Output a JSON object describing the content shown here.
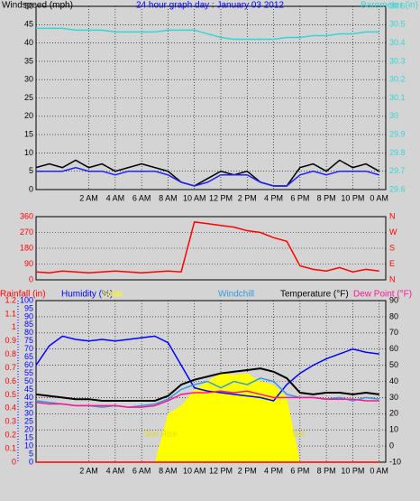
{
  "chart_data": [
    {
      "type": "line",
      "title": "24 hour graph day : January 03 2012",
      "x": [
        -2,
        -1,
        0,
        1,
        2,
        3,
        4,
        5,
        6,
        7,
        8,
        9,
        10,
        11,
        12,
        13,
        14,
        15,
        16,
        17,
        18,
        19,
        20,
        21,
        22,
        23,
        24
      ],
      "xlim": [
        -2,
        24.5
      ],
      "xticks": [
        {
          "value": 2,
          "label": "2 AM"
        },
        {
          "value": 4,
          "label": "4 AM"
        },
        {
          "value": 6,
          "label": "6 AM"
        },
        {
          "value": 8,
          "label": "8 AM"
        },
        {
          "value": 10,
          "label": "10 AM"
        },
        {
          "value": 12,
          "label": "12 PM"
        },
        {
          "value": 14,
          "label": "2 PM"
        },
        {
          "value": 16,
          "label": "4 PM"
        },
        {
          "value": 18,
          "label": "6 PM"
        },
        {
          "value": 20,
          "label": "8 PM"
        },
        {
          "value": 22,
          "label": "10 PM"
        },
        {
          "value": 24,
          "label": "0 AM"
        }
      ],
      "ylim": [
        0,
        50
      ],
      "yticks": [
        0,
        5,
        10,
        15,
        20,
        25,
        30,
        35,
        40,
        45,
        50
      ],
      "ycolor": "#000000",
      "y2lim": [
        29.6,
        30.6
      ],
      "y2ticks": [
        29.6,
        29.7,
        29.8,
        29.9,
        30,
        30.1,
        30.2,
        30.3,
        30.4,
        30.5,
        30.6
      ],
      "y2color": "#33d6d6",
      "grid": true,
      "series": [
        {
          "name": "Windspeed (mph)",
          "color": "#000000",
          "values": [
            6,
            7,
            6,
            8,
            6,
            7,
            5,
            6,
            7,
            6,
            5,
            2,
            1,
            3,
            5,
            4,
            5,
            2,
            1,
            1,
            6,
            7,
            5,
            8,
            6,
            7,
            5
          ]
        },
        {
          "color": "#2020ff",
          "values": [
            5,
            5,
            5,
            6,
            5,
            5,
            4,
            5,
            5,
            5,
            4,
            2,
            1,
            2,
            4,
            4,
            4,
            2,
            1,
            1,
            4,
            5,
            4,
            5,
            5,
            5,
            4
          ]
        },
        {
          "name": "Barometer (in)",
          "color": "#33d6d6",
          "axis": "y2",
          "values": [
            30.48,
            30.48,
            30.48,
            30.47,
            30.47,
            30.47,
            30.46,
            30.46,
            30.46,
            30.46,
            30.47,
            30.47,
            30.47,
            30.45,
            30.43,
            30.42,
            30.42,
            30.42,
            30.42,
            30.43,
            30.43,
            30.44,
            30.44,
            30.45,
            30.45,
            30.46,
            30.46
          ]
        }
      ]
    },
    {
      "type": "line",
      "x": [
        -2,
        -1,
        0,
        1,
        2,
        3,
        4,
        5,
        6,
        7,
        8,
        9,
        10,
        11,
        12,
        13,
        14,
        15,
        16,
        17,
        18,
        19,
        20,
        21,
        22,
        23,
        24
      ],
      "xlim": [
        -2,
        24.5
      ],
      "ylim": [
        0,
        360
      ],
      "yticks": [
        0,
        90,
        180,
        270,
        360
      ],
      "ycolor": "#ff0000",
      "y2lim": [
        0,
        360
      ],
      "y2ticks": [
        {
          "value": 0,
          "label": "N"
        },
        {
          "value": 90,
          "label": "E"
        },
        {
          "value": 180,
          "label": "S"
        },
        {
          "value": 270,
          "label": "W"
        },
        {
          "value": 360,
          "label": "N"
        }
      ],
      "y2color": "#ff0000",
      "grid": true,
      "series": [
        {
          "color": "#ff0000",
          "values": [
            45,
            40,
            50,
            45,
            40,
            45,
            50,
            45,
            40,
            45,
            50,
            45,
            330,
            320,
            310,
            300,
            280,
            270,
            240,
            220,
            80,
            60,
            50,
            70,
            45,
            60,
            50
          ]
        }
      ]
    },
    {
      "type": "line",
      "x": [
        -2,
        -1,
        0,
        1,
        2,
        3,
        4,
        5,
        6,
        7,
        8,
        9,
        10,
        11,
        12,
        13,
        14,
        15,
        16,
        17,
        18,
        19,
        20,
        21,
        22,
        23,
        24
      ],
      "xlim": [
        -2,
        24.5
      ],
      "xticks": [
        {
          "value": 2,
          "label": "2 AM"
        },
        {
          "value": 4,
          "label": "4 AM"
        },
        {
          "value": 6,
          "label": "6 AM"
        },
        {
          "value": 8,
          "label": "8 AM"
        },
        {
          "value": 10,
          "label": "10 AM"
        },
        {
          "value": 12,
          "label": "12 PM"
        },
        {
          "value": 14,
          "label": "2 PM"
        },
        {
          "value": 16,
          "label": "4 PM"
        },
        {
          "value": 18,
          "label": "6 PM"
        },
        {
          "value": 20,
          "label": "8 PM"
        },
        {
          "value": 22,
          "label": "10 PM"
        },
        {
          "value": 24,
          "label": "0 AM"
        }
      ],
      "ylim": [
        0,
        100
      ],
      "yticks": [
        0,
        5,
        10,
        15,
        20,
        25,
        30,
        35,
        40,
        45,
        50,
        55,
        60,
        65,
        70,
        75,
        80,
        85,
        90,
        95,
        100
      ],
      "ycolor": "#0000ff",
      "y2lim": [
        -10,
        90
      ],
      "y2ticks": [
        -10,
        0,
        10,
        20,
        30,
        40,
        50,
        60,
        70,
        80,
        90
      ],
      "y2color": "#000000",
      "y3lim": [
        0,
        1.2
      ],
      "y3ticks": [
        0,
        0.1,
        0.2,
        0.3,
        0.4,
        0.5,
        0.6,
        0.7,
        0.8,
        0.9,
        1,
        1.1,
        1.2
      ],
      "y3color": "#ff0000",
      "grid": true,
      "annotations": [
        "Sun Rise",
        "Set"
      ],
      "series": [
        {
          "name": "Solar",
          "color": "#ffff00",
          "kind": "area",
          "values": [
            0,
            0,
            0,
            0,
            0,
            0,
            0,
            0,
            0,
            0,
            30,
            35,
            45,
            50,
            55,
            54,
            55,
            50,
            48,
            40,
            0,
            0,
            0,
            0,
            0,
            0,
            0
          ]
        },
        {
          "name": "Rainfall (in)",
          "color": "#ff0000",
          "axis": "y3",
          "values": [
            0,
            0,
            0,
            0,
            0,
            0,
            0,
            0,
            0,
            0,
            0,
            0,
            0,
            0,
            0,
            0,
            0,
            0,
            0,
            0,
            0,
            0,
            0,
            0,
            0,
            0,
            0
          ]
        },
        {
          "name": "Humidity (%)",
          "color": "#0000ff",
          "values": [
            60,
            72,
            78,
            76,
            75,
            76,
            75,
            76,
            77,
            78,
            74,
            60,
            46,
            44,
            43,
            42,
            41,
            40,
            38,
            48,
            55,
            60,
            64,
            67,
            70,
            68,
            67
          ]
        },
        {
          "name": "Windchill",
          "color": "#3399dd",
          "axis": "y2",
          "values": [
            28,
            27,
            26,
            25,
            25,
            24,
            25,
            24,
            25,
            26,
            29,
            35,
            38,
            40,
            36,
            40,
            38,
            42,
            40,
            32,
            30,
            30,
            29,
            30,
            28,
            30,
            29
          ]
        },
        {
          "name": "Temperature (°F)",
          "color": "#000000",
          "axis": "y2",
          "values": [
            32,
            31,
            30,
            29,
            29,
            28,
            28,
            28,
            28,
            28,
            31,
            38,
            41,
            43,
            45,
            46,
            47,
            48,
            46,
            42,
            33,
            32,
            33,
            33,
            32,
            33,
            32
          ]
        },
        {
          "name": "Dew Point (°F)",
          "color": "#ff1493",
          "axis": "y2",
          "values": [
            27,
            26,
            26,
            25,
            25,
            25,
            25,
            24,
            24,
            25,
            28,
            32,
            33,
            33,
            34,
            33,
            34,
            32,
            30,
            30,
            30,
            30,
            29,
            29,
            29,
            28,
            28
          ]
        }
      ]
    }
  ]
}
